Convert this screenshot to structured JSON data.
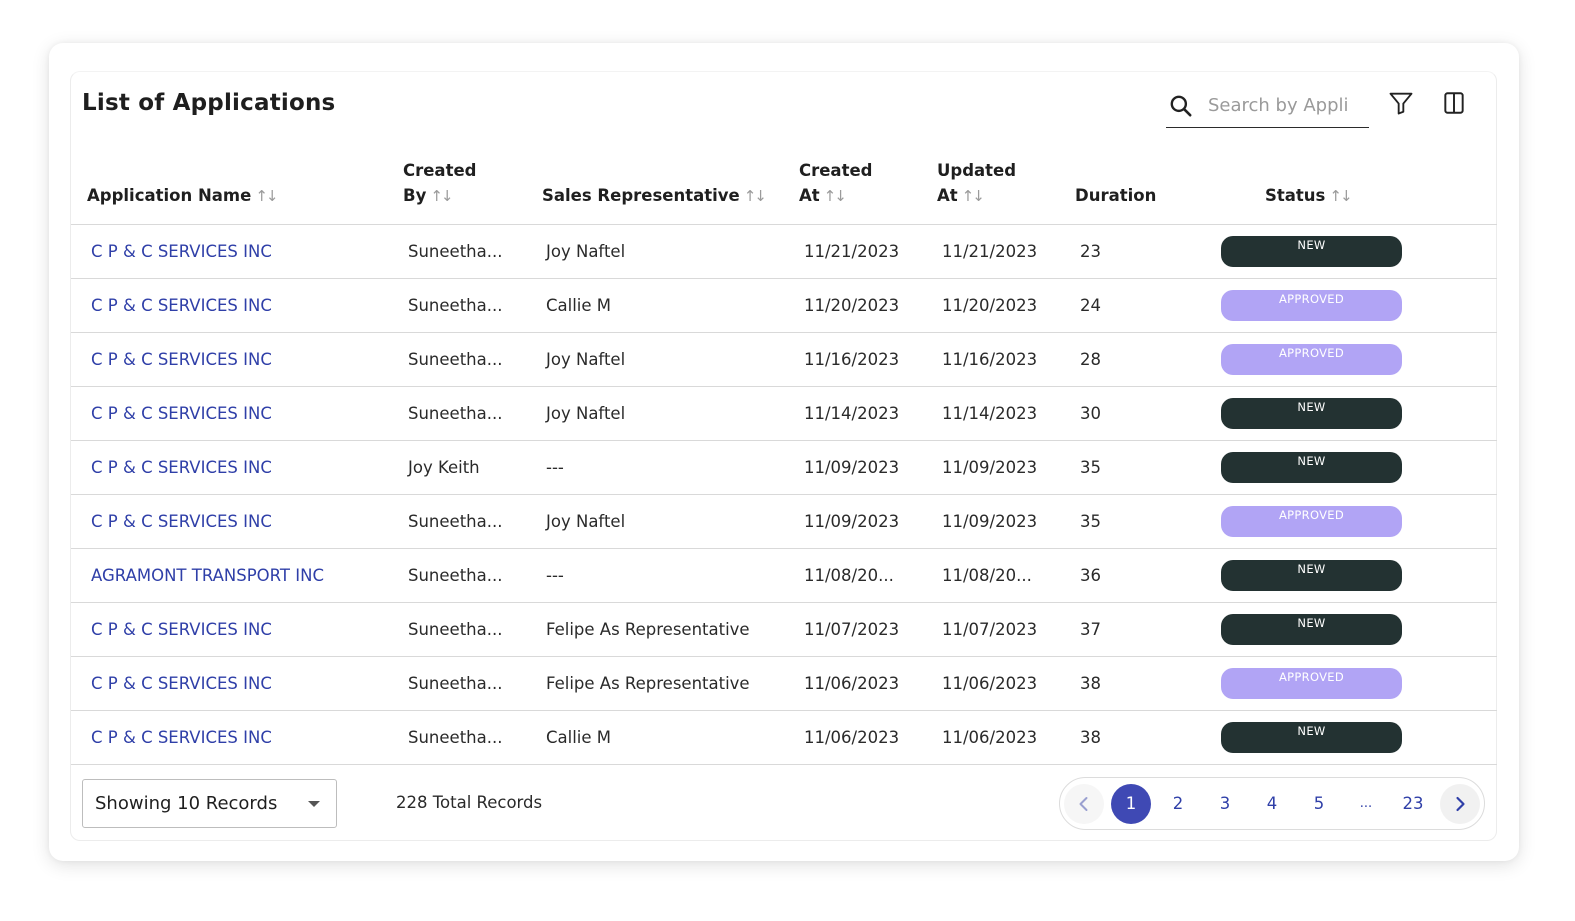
{
  "header": {
    "title": "List of Applications",
    "search_placeholder": "Search by Appli"
  },
  "table": {
    "columns": {
      "app_name": "Application Name",
      "created_by_1": "Created",
      "created_by_2": "By",
      "sales_rep": "Sales Representative",
      "created_at_1": "Created",
      "created_at_2": "At",
      "updated_at_1": "Updated",
      "updated_at_2": "At",
      "duration": "Duration",
      "status": "Status"
    },
    "sort_glyph": "↑↓",
    "rows": [
      {
        "name": "C P & C SERVICES INC",
        "created_by": "Suneetha...",
        "rep": "Joy Naftel",
        "created_at": "11/21/2023",
        "updated_at": "11/21/2023",
        "duration": "23",
        "status": "NEW"
      },
      {
        "name": "C P & C SERVICES INC",
        "created_by": "Suneetha...",
        "rep": "Callie M",
        "created_at": "11/20/2023",
        "updated_at": "11/20/2023",
        "duration": "24",
        "status": "APPROVED"
      },
      {
        "name": "C P & C SERVICES INC",
        "created_by": "Suneetha...",
        "rep": "Joy Naftel",
        "created_at": "11/16/2023",
        "updated_at": "11/16/2023",
        "duration": "28",
        "status": "APPROVED"
      },
      {
        "name": "C P & C SERVICES INC",
        "created_by": "Suneetha...",
        "rep": "Joy Naftel",
        "created_at": "11/14/2023",
        "updated_at": "11/14/2023",
        "duration": "30",
        "status": "NEW"
      },
      {
        "name": "C P & C SERVICES INC",
        "created_by": "Joy Keith",
        "rep": "---",
        "created_at": "11/09/2023",
        "updated_at": "11/09/2023",
        "duration": "35",
        "status": "NEW"
      },
      {
        "name": "C P & C SERVICES INC",
        "created_by": "Suneetha...",
        "rep": "Joy Naftel",
        "created_at": "11/09/2023",
        "updated_at": "11/09/2023",
        "duration": "35",
        "status": "APPROVED"
      },
      {
        "name": "AGRAMONT TRANSPORT INC",
        "created_by": "Suneetha...",
        "rep": "---",
        "created_at": "11/08/20...",
        "updated_at": "11/08/20...",
        "duration": "36",
        "status": "NEW"
      },
      {
        "name": "C P & C SERVICES INC",
        "created_by": "Suneetha...",
        "rep": "Felipe As Representative",
        "created_at": "11/07/2023",
        "updated_at": "11/07/2023",
        "duration": "37",
        "status": "NEW"
      },
      {
        "name": "C P & C SERVICES INC",
        "created_by": "Suneetha...",
        "rep": "Felipe As Representative",
        "created_at": "11/06/2023",
        "updated_at": "11/06/2023",
        "duration": "38",
        "status": "APPROVED"
      },
      {
        "name": "C P & C SERVICES INC",
        "created_by": "Suneetha...",
        "rep": "Callie M",
        "created_at": "11/06/2023",
        "updated_at": "11/06/2023",
        "duration": "38",
        "status": "NEW"
      }
    ]
  },
  "footer": {
    "page_size_label": "Showing 10 Records",
    "total_label": "228 Total Records",
    "pages": [
      "1",
      "2",
      "3",
      "4",
      "5",
      "...",
      "23"
    ],
    "active_page": "1",
    "prev_icon": "chevron-left-icon",
    "next_icon": "chevron-right-icon"
  },
  "colors": {
    "link": "#2f3fa8",
    "status_new": "#233232",
    "status_approved": "#b1a4f5",
    "page_active": "#3f49b4"
  }
}
